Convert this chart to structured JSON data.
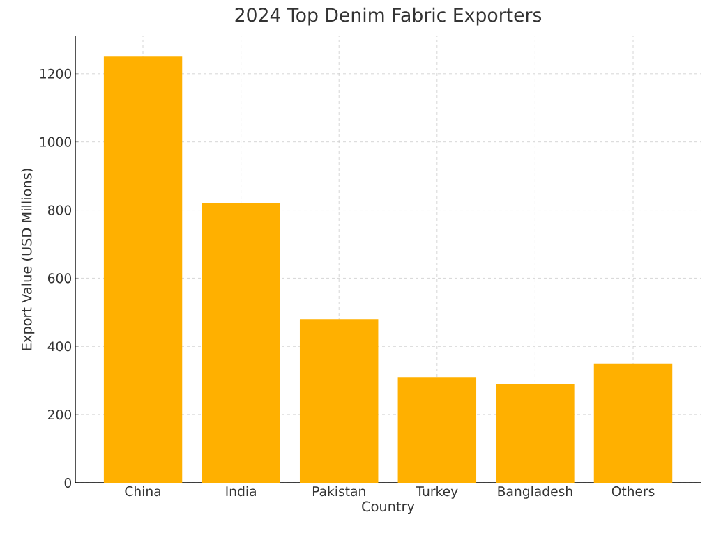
{
  "chart_data": {
    "type": "bar",
    "title": "2024 Top Denim Fabric Exporters",
    "xlabel": "Country",
    "ylabel": "Export Value (USD Millions)",
    "categories": [
      "China",
      "India",
      "Pakistan",
      "Turkey",
      "Bangladesh",
      "Others"
    ],
    "values": [
      1250,
      820,
      480,
      310,
      290,
      350
    ],
    "color": "#ffb000",
    "ylim": [
      0,
      1310
    ],
    "yticks": [
      0,
      200,
      400,
      600,
      800,
      1000,
      1200
    ],
    "grid": true
  }
}
